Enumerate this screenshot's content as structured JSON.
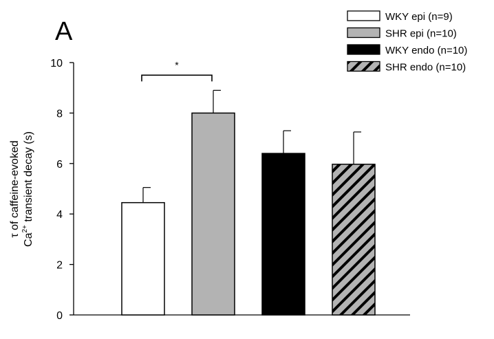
{
  "chart_data": {
    "type": "bar",
    "panel_label": "A",
    "title": "",
    "xlabel": "",
    "ylabel": {
      "line1": "τ of caffeine-evoked",
      "line2_main": "Ca",
      "line2_sup": "2+",
      "line2_rest": " transient decay (s)"
    },
    "ylim": [
      0,
      10
    ],
    "yticks": [
      0,
      2,
      4,
      6,
      8,
      10
    ],
    "grid": false,
    "legend_position": "top-right",
    "series": [
      {
        "name": "WKY epi (n=9)",
        "value": 4.45,
        "error": 0.6,
        "fill": "#ffffff",
        "pattern": "none"
      },
      {
        "name": "SHR epi (n=10)",
        "value": 8.0,
        "error": 0.9,
        "fill": "#b3b3b3",
        "pattern": "none"
      },
      {
        "name": "WKY endo (n=10)",
        "value": 6.4,
        "error": 0.9,
        "fill": "#000000",
        "pattern": "none"
      },
      {
        "name": "SHR endo (n=10)",
        "value": 5.97,
        "error": 1.28,
        "fill": "#b3b3b3",
        "pattern": "diagonal-stripes"
      }
    ],
    "significance": {
      "between": [
        0,
        1
      ],
      "y": 9.5,
      "marker": "*"
    }
  }
}
